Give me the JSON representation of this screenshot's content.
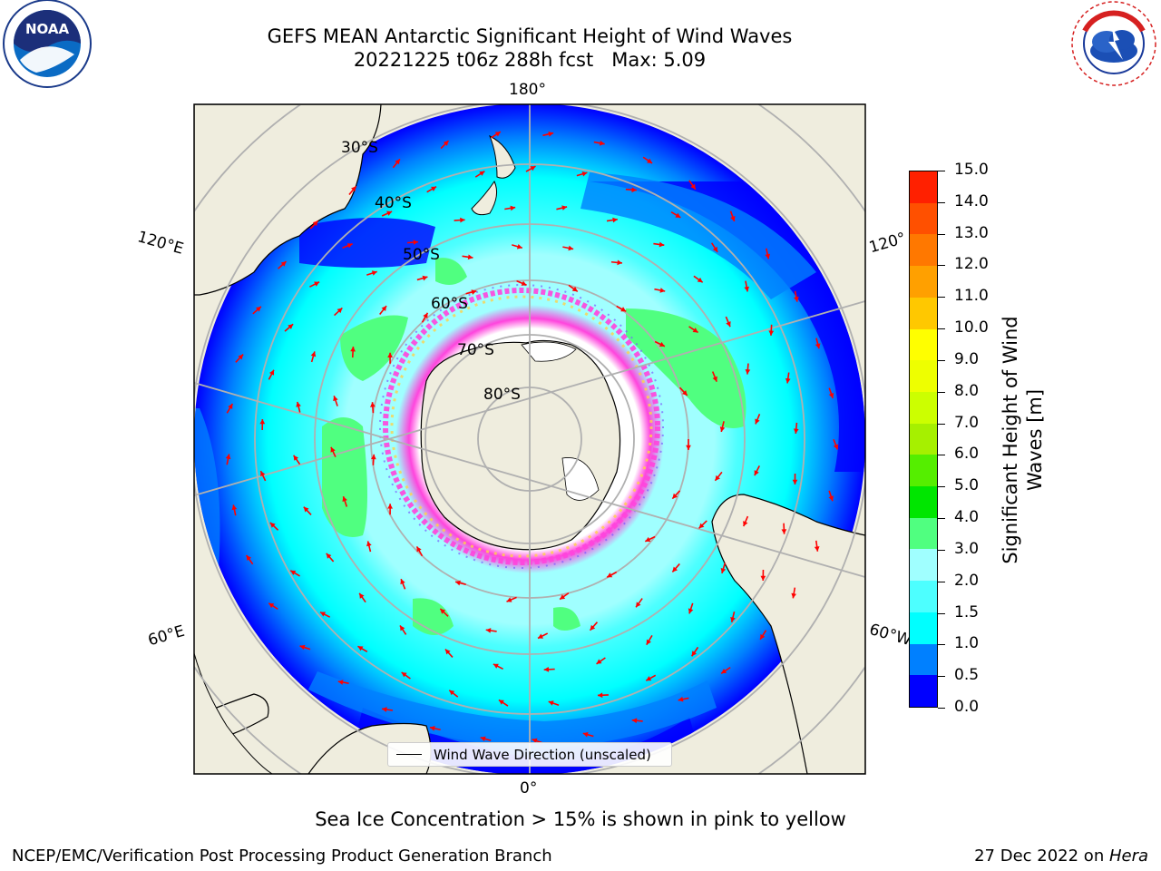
{
  "header": {
    "title_line1": "GEFS MEAN Antarctic Significant Height of Wind Waves",
    "title_line2": "20221225 t06z 288h fcst   Max: 5.09"
  },
  "logos": {
    "left": {
      "name": "noaa-logo",
      "text": "NOAA",
      "ring_text": "NATIONAL OCEANIC AND ATMOSPHERIC ADMINISTRATION · U.S. DEPARTMENT OF COMMERCE"
    },
    "right": {
      "name": "nws-logo",
      "ring_text": "NATIONAL WEATHER SERVICE"
    }
  },
  "map": {
    "projection": "south-polar-stereographic",
    "longitude_labels": {
      "top": "180°",
      "upper_left": "120°E",
      "upper_right": "120°",
      "lower_left": "60°E",
      "lower_right": "60°W",
      "bottom": "0°"
    },
    "latitude_labels": [
      "30°S",
      "40°S",
      "50°S",
      "60°S",
      "70°S",
      "80°S"
    ],
    "legend_label": "Wind Wave Direction (unscaled)",
    "arrow_color": "#ff0000",
    "land_color": "#efedde",
    "grid_color": "#b0b0b0"
  },
  "colorbar": {
    "label": "Significant Height of Wind\nWaves [m]",
    "ticks": [
      "0.0",
      "0.5",
      "1.0",
      "1.5",
      "2.0",
      "3.0",
      "4.0",
      "5.0",
      "6.0",
      "7.0",
      "8.0",
      "9.0",
      "10.0",
      "11.0",
      "12.0",
      "13.0",
      "14.0",
      "15.0"
    ],
    "colors": [
      "#0000ff",
      "#0080ff",
      "#00ffff",
      "#4dffff",
      "#a0ffff",
      "#50ff80",
      "#00e600",
      "#55ee00",
      "#a6f000",
      "#ccff00",
      "#eeff00",
      "#ffff00",
      "#ffc800",
      "#ffa000",
      "#ff7800",
      "#ff5000",
      "#ff2000"
    ]
  },
  "footer": {
    "note": "Sea Ice Concentration > 15% is shown in pink to yellow",
    "credit": "NCEP/EMC/Verification Post Processing Product Generation Branch",
    "date_prefix": "27 Dec 2022 on ",
    "machine": "Hera"
  }
}
